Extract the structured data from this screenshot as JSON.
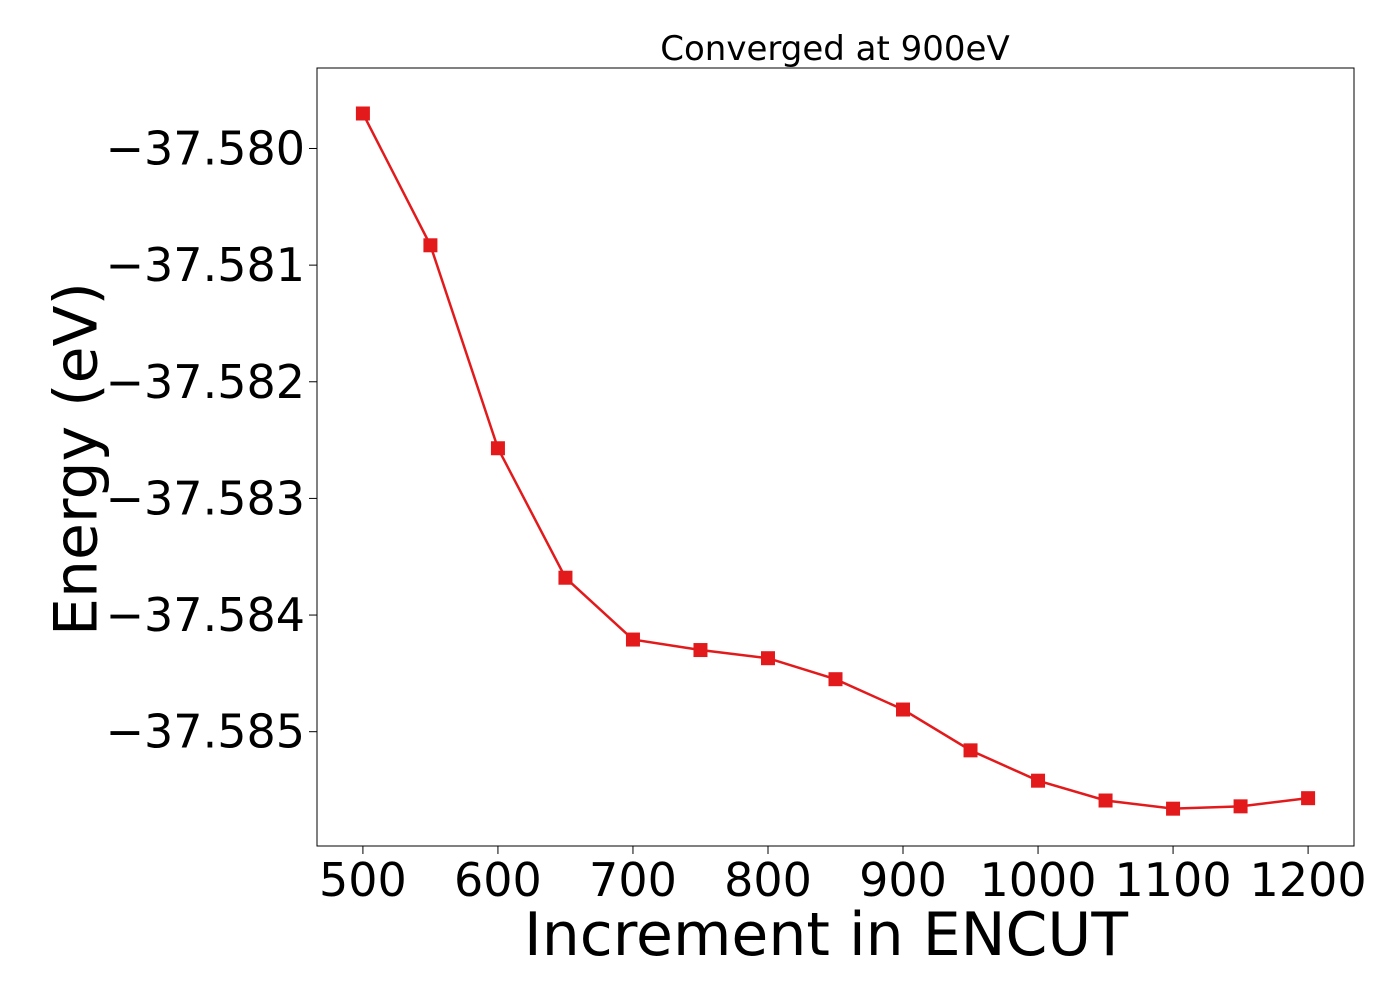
{
  "chart_data": {
    "type": "line",
    "title": "Converged at 900eV",
    "xlabel": "Increment in ENCUT",
    "ylabel": "Energy (eV)",
    "xlim": [
      466,
      1234
    ],
    "ylim": [
      -37.58598,
      -37.57931
    ],
    "xticks": [
      500,
      600,
      700,
      800,
      900,
      1000,
      1100,
      1200
    ],
    "xtick_labels": [
      "500",
      "600",
      "700",
      "800",
      "900",
      "1000",
      "1100",
      "1200"
    ],
    "yticks": [
      -37.58,
      -37.581,
      -37.582,
      -37.583,
      -37.584,
      -37.585
    ],
    "ytick_labels": [
      "−37.580",
      "−37.581",
      "−37.582",
      "−37.583",
      "−37.584",
      "−37.585"
    ],
    "grid": false,
    "series": [
      {
        "name": "Energy",
        "color": "#e31a1c",
        "marker": "square",
        "x": [
          500,
          550,
          600,
          650,
          700,
          750,
          800,
          850,
          900,
          950,
          1000,
          1050,
          1100,
          1150,
          1200
        ],
        "y": [
          -37.5797,
          -37.58083,
          -37.58257,
          -37.58368,
          -37.58421,
          -37.5843,
          -37.58437,
          -37.58455,
          -37.58481,
          -37.58516,
          -37.58542,
          -37.58559,
          -37.58566,
          -37.58564,
          -37.58557
        ]
      }
    ]
  }
}
